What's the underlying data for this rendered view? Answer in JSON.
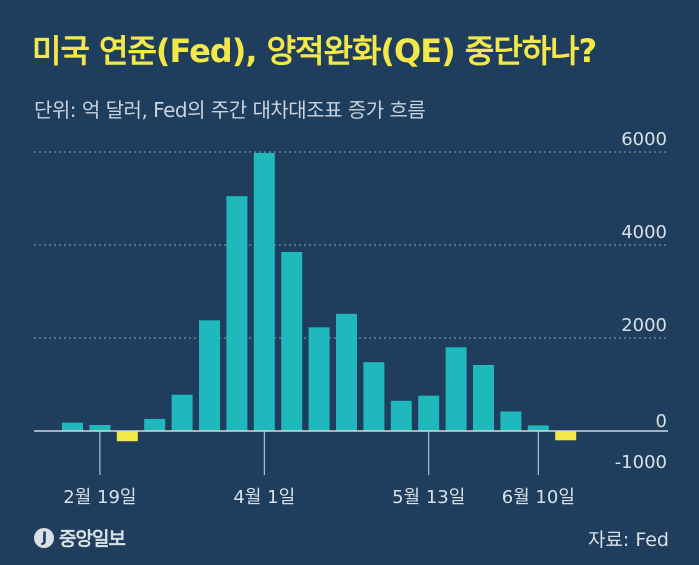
{
  "chart_data": {
    "type": "bar",
    "title": "미국 연준(Fed), 양적완화(QE) 중단하나?",
    "subtitle": "단위: 억 달러, Fed의 주간 대차대조표 증가 흐름",
    "source": "자료: Fed",
    "publisher": "중앙일보",
    "ylim": [
      -1000,
      6000
    ],
    "yticks": [
      6000,
      4000,
      2000,
      0,
      -1000
    ],
    "ytick_labels": [
      "6000",
      "4000",
      "2000",
      "0",
      "-1000"
    ],
    "grid": true,
    "x_labels": [
      {
        "label": "2월 19일",
        "bar_index": 1
      },
      {
        "label": "4월 1일",
        "bar_index": 7
      },
      {
        "label": "5월 13일",
        "bar_index": 13
      },
      {
        "label": "6월 10일",
        "bar_index": 17
      }
    ],
    "values": [
      180,
      130,
      -220,
      260,
      780,
      2380,
      5050,
      5980,
      3850,
      2230,
      2520,
      1480,
      650,
      760,
      1800,
      1420,
      420,
      120,
      -200
    ],
    "colors": {
      "positive": "#1fb8bd",
      "negative": "#f3e84a"
    }
  }
}
